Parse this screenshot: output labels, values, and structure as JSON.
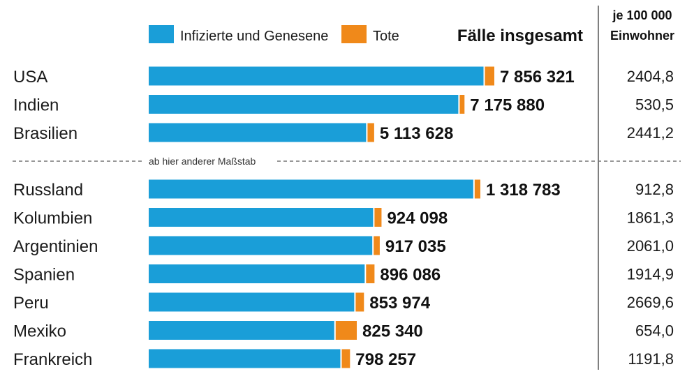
{
  "chart_data": {
    "type": "bar",
    "orientation": "horizontal",
    "stacked": true,
    "legend": {
      "items": [
        {
          "label": "Infizierte und Genesene",
          "color": "#1a9ed8"
        },
        {
          "label": "Tote",
          "color": "#f0891a"
        }
      ],
      "placement": "top"
    },
    "total_header": "Fälle insgesamt",
    "rate_header_line1": "je 100 000",
    "rate_header_line2": "Einwohner",
    "scale_note": "ab hier anderer Maßstab",
    "groups": [
      {
        "categories": [
          "USA",
          "Indien",
          "Brasilien"
        ],
        "totals": [
          7856321,
          7175880,
          5113628
        ],
        "total_labels": [
          "7 856 321",
          "7 175 880",
          "5 113 628"
        ],
        "deaths": [
          215000,
          110000,
          151000
        ],
        "rates": [
          "2404,8",
          "530,5",
          "2441,2"
        ]
      },
      {
        "categories": [
          "Russland",
          "Kolumbien",
          "Argentinien",
          "Spanien",
          "Peru",
          "Mexiko",
          "Frankreich"
        ],
        "totals": [
          1318783,
          924098,
          917035,
          896086,
          853974,
          825340,
          798257
        ],
        "total_labels": [
          "1 318 783",
          "924 098",
          "917 035",
          "896 086",
          "853 974",
          "825 340",
          "798 257"
        ],
        "deaths": [
          22800,
          28000,
          24300,
          33700,
          33200,
          84400,
          33000
        ],
        "rates": [
          "912,8",
          "1861,3",
          "2061,0",
          "1914,9",
          "2669,6",
          "654,0",
          "1191,8"
        ]
      }
    ]
  }
}
